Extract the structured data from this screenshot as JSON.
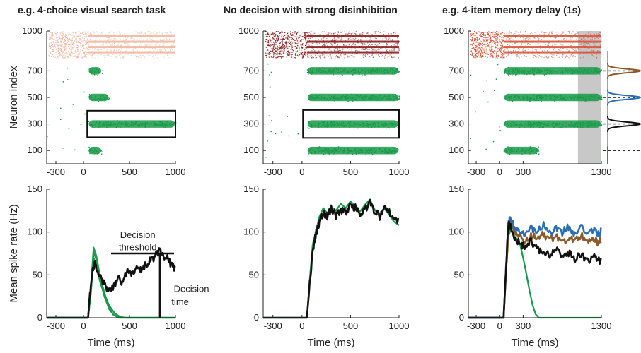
{
  "titles": {
    "left": "e.g. 4-choice visual search task",
    "middle": "No decision with strong disinhibition",
    "right": "e.g. 4-item memory delay (1s)"
  },
  "colors": {
    "excitatory": "#1a9a4a",
    "inh_left": "#f0b8a0",
    "inh_middle": "#8b1e1e",
    "inh_right": "#d4553a",
    "black": "#111111",
    "blue": "#2a6fb5",
    "brown": "#8b5a2b",
    "delay_shade": "#c8c8c8"
  },
  "chart_data": [
    {
      "id": "raster-left",
      "type": "scatter",
      "title": "e.g. 4-choice visual search task",
      "ylabel": "Neuron index",
      "xlabel": "",
      "xlim": [
        -400,
        1000
      ],
      "ylim": [
        0,
        1000
      ],
      "xticks": [
        -300,
        0,
        500,
        1000
      ],
      "xtick_labels": [
        "-300",
        "0",
        "500",
        "1000"
      ],
      "yticks": [
        100,
        300,
        500,
        700,
        1000
      ],
      "ytick_labels": [
        "100",
        "300",
        "500",
        "700",
        "1000"
      ],
      "inhibitory_band": {
        "neurons": [
          800,
          1000
        ],
        "color": "#f0b8a0"
      },
      "excitatory_clusters": [
        {
          "center": 700,
          "t_start": 50,
          "t_end": 200
        },
        {
          "center": 500,
          "t_start": 50,
          "t_end": 280
        },
        {
          "center": 300,
          "t_start": 50,
          "t_end": 1000
        },
        {
          "center": 100,
          "t_start": 50,
          "t_end": 200
        }
      ],
      "box": {
        "t": [
          40,
          1000
        ],
        "neurons": [
          200,
          400
        ]
      }
    },
    {
      "id": "raster-middle",
      "type": "scatter",
      "title": "No decision with strong disinhibition",
      "ylabel": "",
      "xlabel": "",
      "xlim": [
        -400,
        1000
      ],
      "ylim": [
        0,
        1000
      ],
      "xticks": [
        -300,
        0,
        500,
        1000
      ],
      "xtick_labels": [
        "-300",
        "0",
        "500",
        "1000"
      ],
      "yticks": [
        100,
        300,
        500,
        700,
        1000
      ],
      "ytick_labels": [
        "100",
        "300",
        "500",
        "700",
        "1000"
      ],
      "inhibitory_band": {
        "neurons": [
          800,
          1000
        ],
        "color": "#8b1e1e"
      },
      "excitatory_clusters": [
        {
          "center": 700,
          "t_start": 50,
          "t_end": 1000
        },
        {
          "center": 500,
          "t_start": 50,
          "t_end": 1000
        },
        {
          "center": 300,
          "t_start": 50,
          "t_end": 1000
        },
        {
          "center": 100,
          "t_start": 50,
          "t_end": 1000
        }
      ],
      "box": {
        "t": [
          10,
          1000
        ],
        "neurons": [
          195,
          405
        ]
      }
    },
    {
      "id": "raster-right",
      "type": "scatter",
      "title": "e.g. 4-item memory delay (1s)",
      "ylabel": "",
      "xlabel": "",
      "xlim": [
        -400,
        1300
      ],
      "ylim": [
        0,
        1000
      ],
      "xticks": [
        -300,
        0,
        300,
        1300
      ],
      "xtick_labels": [
        "-300",
        "0",
        "300",
        "1300"
      ],
      "yticks": [
        100,
        300,
        500,
        700,
        1000
      ],
      "ytick_labels": [
        "100",
        "300",
        "500",
        "700",
        "1000"
      ],
      "inhibitory_band": {
        "neurons": [
          800,
          1000
        ],
        "color": "#d4553a"
      },
      "excitatory_clusters": [
        {
          "center": 700,
          "t_start": 50,
          "t_end": 1300
        },
        {
          "center": 500,
          "t_start": 50,
          "t_end": 1300
        },
        {
          "center": 300,
          "t_start": 50,
          "t_end": 1300
        },
        {
          "center": 100,
          "t_start": 50,
          "t_end": 500
        }
      ],
      "shaded_window": [
        1000,
        1300
      ],
      "side_profiles": [
        {
          "center": 700,
          "color": "#8b5a2b"
        },
        {
          "center": 500,
          "color": "#2a6fb5"
        },
        {
          "center": 300,
          "color": "#111111"
        },
        {
          "center": 100,
          "color": "#1a9a4a"
        }
      ]
    },
    {
      "id": "rate-left",
      "type": "line",
      "ylabel": "Mean spike rate (Hz)",
      "xlabel": "Time (ms)",
      "xlim": [
        -400,
        1000
      ],
      "ylim": [
        0,
        150
      ],
      "xticks": [
        -300,
        0,
        500,
        1000
      ],
      "xtick_labels": [
        "-300",
        "0",
        "500",
        "1000"
      ],
      "yticks": [
        0,
        50,
        100,
        150
      ],
      "ytick_labels": [
        "0",
        "50",
        "100",
        "150"
      ],
      "series": [
        {
          "color": "#1a9a4a",
          "x": [
            -400,
            50,
            80,
            110,
            140,
            180,
            230,
            280,
            320,
            380,
            450,
            1000
          ],
          "y": [
            0,
            0,
            35,
            82,
            72,
            48,
            28,
            12,
            4,
            0,
            0,
            0
          ]
        },
        {
          "color": "#1a9a4a",
          "x": [
            -400,
            50,
            80,
            110,
            140,
            180,
            230,
            280,
            330,
            390,
            450,
            1000
          ],
          "y": [
            0,
            0,
            30,
            76,
            68,
            44,
            24,
            10,
            3,
            0,
            0,
            0
          ]
        },
        {
          "color": "#1a9a4a",
          "x": [
            -400,
            50,
            80,
            110,
            140,
            180,
            230,
            280,
            340,
            400,
            460,
            1000
          ],
          "y": [
            0,
            0,
            28,
            70,
            62,
            42,
            26,
            14,
            5,
            1,
            0,
            0
          ]
        },
        {
          "color": "#111111",
          "x": [
            -400,
            50,
            70,
            100,
            130,
            160,
            200,
            240,
            280,
            330,
            380,
            420,
            470,
            520,
            570,
            620,
            670,
            720,
            770,
            820,
            870,
            920,
            970,
            1000
          ],
          "y": [
            0,
            0,
            30,
            58,
            64,
            52,
            44,
            35,
            30,
            38,
            46,
            42,
            54,
            50,
            58,
            55,
            62,
            66,
            70,
            78,
            72,
            68,
            60,
            58
          ]
        }
      ],
      "annotations": {
        "threshold_label_1": "Decision",
        "threshold_label_2": "threshold",
        "threshold_value": 75,
        "threshold_range": [
          300,
          1000
        ],
        "time_label_1": "Decision",
        "time_label_2": "time",
        "decision_time": 830
      }
    },
    {
      "id": "rate-middle",
      "type": "line",
      "ylabel": "",
      "xlabel": "Time (ms)",
      "xlim": [
        -400,
        1000
      ],
      "ylim": [
        0,
        150
      ],
      "xticks": [
        -300,
        0,
        500,
        1000
      ],
      "xtick_labels": [
        "-300",
        "0",
        "500",
        "1000"
      ],
      "yticks": [
        0,
        50,
        100,
        150
      ],
      "ytick_labels": [
        "0",
        "50",
        "100",
        "150"
      ],
      "series": [
        {
          "color": "#1a9a4a",
          "x": [
            -400,
            50,
            80,
            110,
            140,
            180,
            220,
            260,
            300,
            350,
            400,
            450,
            500,
            550,
            600,
            650,
            700,
            750,
            800,
            850,
            900,
            950,
            1000
          ],
          "y": [
            0,
            0,
            45,
            85,
            100,
            118,
            128,
            122,
            130,
            125,
            133,
            128,
            136,
            130,
            124,
            132,
            138,
            126,
            118,
            128,
            120,
            112,
            108
          ]
        },
        {
          "color": "#111111",
          "x": [
            -400,
            50,
            80,
            110,
            140,
            180,
            220,
            260,
            300,
            350,
            400,
            450,
            500,
            550,
            600,
            650,
            700,
            750,
            800,
            850,
            900,
            950,
            1000
          ],
          "y": [
            0,
            0,
            40,
            78,
            96,
            112,
            122,
            118,
            128,
            120,
            126,
            122,
            132,
            128,
            120,
            126,
            134,
            124,
            118,
            130,
            124,
            116,
            114
          ]
        }
      ]
    },
    {
      "id": "rate-right",
      "type": "line",
      "ylabel": "",
      "xlabel": "Time (ms)",
      "xlim": [
        -400,
        1300
      ],
      "ylim": [
        0,
        150
      ],
      "xticks": [
        -300,
        0,
        300,
        1300
      ],
      "xtick_labels": [
        "-300",
        "0",
        "300",
        "1300"
      ],
      "yticks": [
        0,
        50,
        100,
        150
      ],
      "ytick_labels": [
        "0",
        "50",
        "100",
        "150"
      ],
      "series": [
        {
          "color": "#1a9a4a",
          "x": [
            -400,
            50,
            80,
            110,
            140,
            180,
            220,
            260,
            300,
            340,
            380,
            420,
            460,
            500,
            1300
          ],
          "y": [
            0,
            0,
            50,
            95,
            102,
            96,
            92,
            86,
            70,
            52,
            32,
            15,
            4,
            0,
            0
          ]
        },
        {
          "color": "#8b5a2b",
          "x": [
            -400,
            50,
            80,
            110,
            140,
            200,
            260,
            320,
            400,
            480,
            560,
            640,
            720,
            800,
            880,
            960,
            1040,
            1120,
            1200,
            1260,
            1300
          ],
          "y": [
            0,
            0,
            50,
            100,
            110,
            100,
            94,
            90,
            96,
            92,
            98,
            90,
            95,
            88,
            94,
            92,
            96,
            90,
            92,
            88,
            92
          ]
        },
        {
          "color": "#2a6fb5",
          "x": [
            -400,
            50,
            80,
            110,
            140,
            200,
            260,
            320,
            400,
            480,
            560,
            640,
            720,
            800,
            880,
            960,
            1040,
            1120,
            1200,
            1260,
            1300
          ],
          "y": [
            0,
            0,
            55,
            108,
            118,
            104,
            102,
            98,
            106,
            100,
            108,
            98,
            104,
            100,
            106,
            98,
            108,
            100,
            104,
            98,
            102
          ]
        },
        {
          "color": "#111111",
          "x": [
            -400,
            50,
            80,
            110,
            140,
            200,
            260,
            320,
            400,
            480,
            560,
            640,
            720,
            800,
            880,
            960,
            1040,
            1120,
            1200,
            1260,
            1300
          ],
          "y": [
            0,
            0,
            55,
            110,
            105,
            92,
            86,
            84,
            90,
            80,
            78,
            74,
            82,
            70,
            76,
            68,
            74,
            66,
            72,
            66,
            68
          ]
        }
      ]
    }
  ]
}
